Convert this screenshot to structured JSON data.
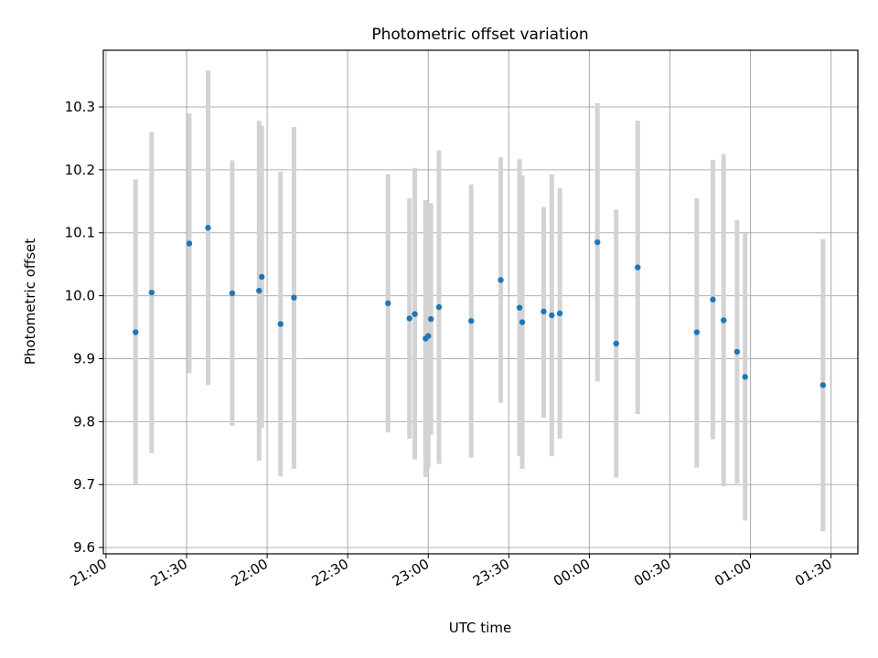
{
  "chart_data": {
    "type": "scatter",
    "title": "Photometric offset variation",
    "xlabel": "UTC time",
    "ylabel": "Photometric offset",
    "x_ticks": [
      "21:00",
      "21:30",
      "22:00",
      "22:30",
      "23:00",
      "23:30",
      "00:00",
      "00:30",
      "01:00",
      "01:30"
    ],
    "y_ticks": [
      "9.6",
      "9.7",
      "9.8",
      "9.9",
      "10.0",
      "10.1",
      "10.2",
      "10.3"
    ],
    "x_range": [
      "20:59",
      "01:40"
    ],
    "ylim": [
      9.59,
      10.39
    ],
    "grid": true,
    "colors": {
      "point": "#1f77b4",
      "errorbar": "#d3d3d3",
      "grid": "#b0b0b0"
    },
    "points": [
      {
        "t": "21:11",
        "y": 9.942,
        "lo": 9.7,
        "hi": 10.185
      },
      {
        "t": "21:17",
        "y": 10.005,
        "lo": 9.75,
        "hi": 10.26
      },
      {
        "t": "21:31",
        "y": 10.083,
        "lo": 9.877,
        "hi": 10.29
      },
      {
        "t": "21:38",
        "y": 10.108,
        "lo": 9.858,
        "hi": 10.358
      },
      {
        "t": "21:47",
        "y": 10.004,
        "lo": 9.793,
        "hi": 10.215
      },
      {
        "t": "21:57",
        "y": 10.008,
        "lo": 9.738,
        "hi": 10.278
      },
      {
        "t": "21:58",
        "y": 10.03,
        "lo": 9.79,
        "hi": 10.27
      },
      {
        "t": "22:05",
        "y": 9.955,
        "lo": 9.713,
        "hi": 10.197
      },
      {
        "t": "22:10",
        "y": 9.997,
        "lo": 9.725,
        "hi": 10.268
      },
      {
        "t": "22:45",
        "y": 9.988,
        "lo": 9.783,
        "hi": 10.193
      },
      {
        "t": "22:53",
        "y": 9.964,
        "lo": 9.773,
        "hi": 10.155
      },
      {
        "t": "22:55",
        "y": 9.971,
        "lo": 9.74,
        "hi": 10.203
      },
      {
        "t": "22:59",
        "y": 9.932,
        "lo": 9.712,
        "hi": 10.152
      },
      {
        "t": "23:00",
        "y": 9.936,
        "lo": 9.726,
        "hi": 10.146
      },
      {
        "t": "23:01",
        "y": 9.963,
        "lo": 9.779,
        "hi": 10.147
      },
      {
        "t": "23:04",
        "y": 9.982,
        "lo": 9.733,
        "hi": 10.231
      },
      {
        "t": "23:16",
        "y": 9.96,
        "lo": 9.743,
        "hi": 10.177
      },
      {
        "t": "23:27",
        "y": 10.025,
        "lo": 9.83,
        "hi": 10.22
      },
      {
        "t": "23:34",
        "y": 9.981,
        "lo": 9.745,
        "hi": 10.217
      },
      {
        "t": "23:35",
        "y": 9.958,
        "lo": 9.725,
        "hi": 10.191
      },
      {
        "t": "23:43",
        "y": 9.975,
        "lo": 9.806,
        "hi": 10.141
      },
      {
        "t": "23:46",
        "y": 9.969,
        "lo": 9.745,
        "hi": 10.193
      },
      {
        "t": "23:49",
        "y": 9.972,
        "lo": 9.773,
        "hi": 10.171
      },
      {
        "t": "00:03",
        "y": 10.085,
        "lo": 9.864,
        "hi": 10.306
      },
      {
        "t": "00:10",
        "y": 9.924,
        "lo": 9.711,
        "hi": 10.137
      },
      {
        "t": "00:18",
        "y": 10.045,
        "lo": 9.812,
        "hi": 10.278
      },
      {
        "t": "00:40",
        "y": 9.942,
        "lo": 9.727,
        "hi": 10.155
      },
      {
        "t": "00:46",
        "y": 9.994,
        "lo": 9.772,
        "hi": 10.216
      },
      {
        "t": "00:50",
        "y": 9.961,
        "lo": 9.697,
        "hi": 10.225
      },
      {
        "t": "00:55",
        "y": 9.911,
        "lo": 9.702,
        "hi": 10.12
      },
      {
        "t": "00:58",
        "y": 9.871,
        "lo": 9.643,
        "hi": 10.099
      },
      {
        "t": "01:27",
        "y": 9.858,
        "lo": 9.626,
        "hi": 10.09
      }
    ]
  }
}
